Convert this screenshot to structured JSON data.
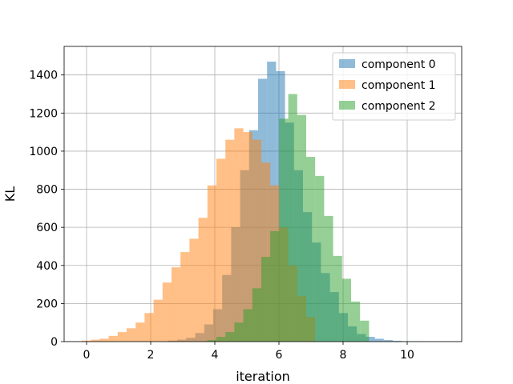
{
  "chart_data": {
    "type": "bar",
    "xlabel": "iteration",
    "ylabel": "KL",
    "xlim": [
      -0.7,
      11.7
    ],
    "ylim": [
      0,
      1550
    ],
    "xticks": [
      0,
      2,
      4,
      6,
      8,
      10
    ],
    "yticks": [
      0,
      200,
      400,
      600,
      800,
      1000,
      1200,
      1400
    ],
    "grid": true,
    "legend_position": "top-right",
    "bin_width": 0.28,
    "series": [
      {
        "name": "component 0",
        "color": "#1f77b4",
        "opacity": 0.5,
        "bin_starts": [
          2.55,
          2.83,
          3.11,
          3.39,
          3.67,
          3.95,
          4.23,
          4.51,
          4.79,
          5.07,
          5.35,
          5.63,
          5.91,
          6.19,
          6.47,
          6.75,
          7.03,
          7.31,
          7.59,
          7.87,
          8.15,
          8.43,
          8.71,
          8.99,
          9.27,
          9.55,
          9.83,
          10.11,
          10.39,
          10.67
        ],
        "values": [
          5,
          10,
          20,
          45,
          90,
          170,
          350,
          600,
          900,
          1110,
          1380,
          1470,
          1420,
          1150,
          900,
          680,
          520,
          360,
          260,
          150,
          80,
          40,
          25,
          15,
          8,
          4,
          2,
          1,
          0,
          0
        ]
      },
      {
        "name": "component 1",
        "color": "#ff7f0e",
        "opacity": 0.5,
        "bin_starts": [
          -0.15,
          0.13,
          0.41,
          0.69,
          0.97,
          1.25,
          1.53,
          1.81,
          2.09,
          2.37,
          2.65,
          2.93,
          3.21,
          3.49,
          3.77,
          4.05,
          4.33,
          4.61,
          4.89,
          5.17,
          5.45,
          5.73,
          6.01,
          6.29,
          6.57,
          6.85
        ],
        "values": [
          5,
          10,
          15,
          30,
          50,
          70,
          100,
          150,
          220,
          310,
          390,
          470,
          540,
          650,
          820,
          960,
          1060,
          1120,
          1100,
          1060,
          940,
          820,
          600,
          400,
          240,
          130
        ]
      },
      {
        "name": "component 2",
        "color": "#2ca02c",
        "opacity": 0.5,
        "bin_starts": [
          3.77,
          4.05,
          4.33,
          4.61,
          4.89,
          5.17,
          5.45,
          5.73,
          6.01,
          6.29,
          6.57,
          6.85,
          7.13,
          7.41,
          7.69,
          7.97,
          8.25,
          8.53
        ],
        "values": [
          8,
          25,
          50,
          100,
          170,
          280,
          445,
          580,
          1170,
          1300,
          1190,
          970,
          870,
          660,
          450,
          330,
          210,
          110
        ]
      }
    ]
  }
}
